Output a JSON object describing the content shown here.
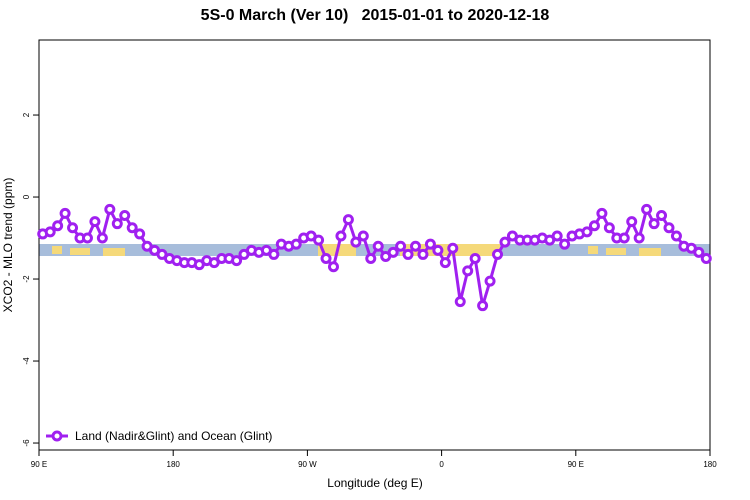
{
  "chart_data": {
    "type": "line",
    "title": "5S-0 March (Ver 10)   2015-01-01 to 2020-12-18",
    "x_label": "Longitude (deg E)",
    "y_label": "XCO2 - MLO trend (ppm)",
    "xlim": [
      90,
      540
    ],
    "xticks": [
      {
        "value": 90,
        "label": "90 E"
      },
      180,
      {
        "value": 270,
        "label": "90 W"
      },
      {
        "value": 360,
        "label": "0"
      },
      {
        "value": 450,
        "label": "90 E"
      },
      {
        "value": 540,
        "label": "180"
      }
    ],
    "ylim": [
      -6.17,
      3.83
    ],
    "yticks": [
      -6,
      -4,
      -2,
      0,
      2
    ],
    "legend": "bottom-left",
    "x": [
      92.5,
      97.5,
      102.5,
      107.5,
      112.5,
      117.5,
      122.5,
      127.5,
      132.5,
      137.5,
      142.5,
      147.5,
      152.5,
      157.5,
      162.5,
      167.5,
      172.5,
      177.5,
      182.5,
      187.5,
      192.5,
      197.5,
      202.5,
      207.5,
      212.5,
      217.5,
      222.5,
      227.5,
      232.5,
      237.5,
      242.5,
      247.5,
      252.5,
      257.5,
      262.5,
      267.5,
      272.5,
      277.5,
      282.5,
      287.5,
      292.5,
      297.5,
      302.5,
      307.5,
      312.5,
      317.5,
      322.5,
      327.5,
      332.5,
      337.5,
      342.5,
      347.5,
      352.5,
      357.5,
      362.5,
      367.5,
      372.5,
      377.5,
      382.5,
      387.5,
      392.5,
      397.5,
      402.5,
      407.5,
      412.5,
      417.5,
      422.5,
      427.5,
      432.5,
      437.5,
      442.5,
      447.5,
      452.5,
      457.5,
      462.5,
      467.5,
      472.5,
      477.5,
      482.5,
      487.5,
      492.5,
      497.5,
      502.5,
      507.5,
      512.5,
      517.5,
      522.5,
      527.5,
      532.5,
      537.5
    ],
    "series": [
      {
        "name": "Land (Nadir&Glint) and Ocean (Glint)",
        "color": "#a020f0",
        "values": [
          -0.9,
          -0.85,
          -0.7,
          -0.4,
          -0.75,
          -1.0,
          -1.0,
          -0.6,
          -1.0,
          -0.3,
          -0.65,
          -0.45,
          -0.75,
          -0.9,
          -1.2,
          -1.3,
          -1.4,
          -1.5,
          -1.55,
          -1.6,
          -1.6,
          -1.65,
          -1.55,
          -1.6,
          -1.5,
          -1.5,
          -1.55,
          -1.4,
          -1.3,
          -1.35,
          -1.3,
          -1.4,
          -1.15,
          -1.2,
          -1.15,
          -1.0,
          -0.95,
          -1.05,
          -1.5,
          -1.7,
          -0.95,
          -0.55,
          -1.1,
          -0.95,
          -1.5,
          -1.2,
          -1.45,
          -1.35,
          -1.2,
          -1.4,
          -1.2,
          -1.4,
          -1.15,
          -1.3,
          -1.6,
          -1.25,
          -2.55,
          -1.8,
          -1.5,
          -2.65,
          -2.05,
          -1.4,
          -1.1,
          -0.95,
          -1.05,
          -1.05,
          -1.05,
          -1.0,
          -1.05,
          -0.95,
          -1.15,
          -0.95,
          -0.9,
          -0.85,
          -0.7,
          -0.4,
          -0.75,
          -1.0,
          -1.0,
          -0.6,
          -1.0,
          -0.3,
          -0.65,
          -0.45,
          -0.75,
          -0.95,
          -1.2,
          -1.25,
          -1.35,
          -1.5
        ]
      }
    ]
  }
}
